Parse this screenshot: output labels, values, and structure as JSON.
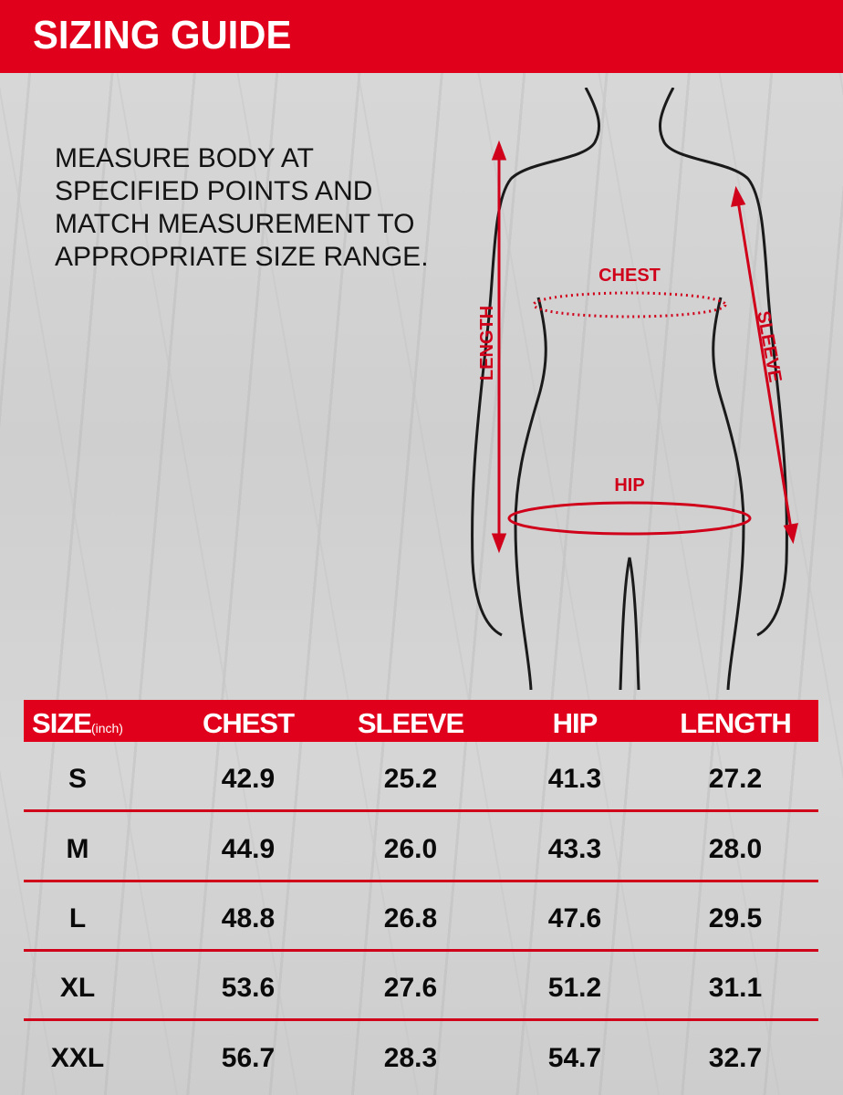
{
  "header": {
    "title": "SIZING GUIDE"
  },
  "instructions": [
    "MEASURE BODY AT",
    "SPECIFIED POINTS AND",
    "MATCH MEASUREMENT TO",
    "APPROPRIATE SIZE RANGE."
  ],
  "diagram": {
    "labels": {
      "chest": "CHEST",
      "sleeve": "SLEEVE",
      "hip": "HIP",
      "length": "LENGTH"
    }
  },
  "colors": {
    "accent": "#e0001b",
    "text": "#0a0a0a"
  },
  "table": {
    "headers": {
      "size": "SIZE",
      "unit": "(inch)",
      "chest": "CHEST",
      "sleeve": "SLEEVE",
      "hip": "HIP",
      "length": "LENGTH"
    },
    "rows": [
      {
        "size": "S",
        "chest": "42.9",
        "sleeve": "25.2",
        "hip": "41.3",
        "length": "27.2"
      },
      {
        "size": "M",
        "chest": "44.9",
        "sleeve": "26.0",
        "hip": "43.3",
        "length": "28.0"
      },
      {
        "size": "L",
        "chest": "48.8",
        "sleeve": "26.8",
        "hip": "47.6",
        "length": "29.5"
      },
      {
        "size": "XL",
        "chest": "53.6",
        "sleeve": "27.6",
        "hip": "51.2",
        "length": "31.1"
      },
      {
        "size": "XXL",
        "chest": "56.7",
        "sleeve": "28.3",
        "hip": "54.7",
        "length": "32.7"
      }
    ]
  }
}
